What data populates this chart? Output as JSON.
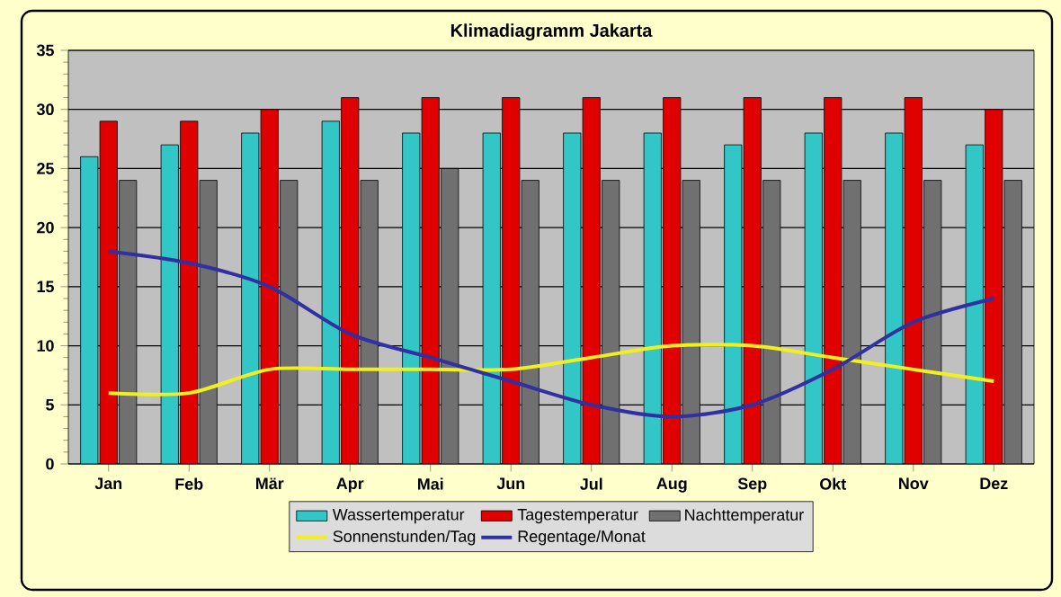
{
  "chart_data": {
    "type": "bar",
    "title": "Klimadiagramm Jakarta",
    "categories": [
      "Jan",
      "Feb",
      "Mär",
      "Apr",
      "Mai",
      "Jun",
      "Jul",
      "Aug",
      "Sep",
      "Okt",
      "Nov",
      "Dez"
    ],
    "series": [
      {
        "name": "Wassertemperatur",
        "color": "#33c6c6",
        "values": [
          26,
          27,
          28,
          29,
          28,
          28,
          28,
          28,
          27,
          28,
          28,
          27
        ]
      },
      {
        "name": "Tagestemperatur",
        "color": "#e00000",
        "values": [
          29,
          29,
          30,
          31,
          31,
          31,
          31,
          31,
          31,
          31,
          31,
          30
        ]
      },
      {
        "name": "Nachttemperatur",
        "color": "#707070",
        "values": [
          24,
          24,
          24,
          24,
          25,
          24,
          24,
          24,
          24,
          24,
          24,
          24
        ]
      },
      {
        "name": "Sonnenstunden/Tag",
        "type": "line",
        "color": "#f0f020",
        "values": [
          6,
          6,
          8,
          8,
          8,
          8,
          9,
          10,
          10,
          9,
          8,
          7
        ]
      },
      {
        "name": "Regentage/Monat",
        "type": "line",
        "color": "#3030a0",
        "values": [
          18,
          17,
          15,
          11,
          9,
          7,
          5,
          4,
          5,
          8,
          12,
          14
        ]
      }
    ],
    "ylim": [
      0,
      35
    ],
    "yticks": [
      0,
      5,
      10,
      15,
      20,
      25,
      30,
      35
    ],
    "grid": "y",
    "legend": "bottom"
  }
}
